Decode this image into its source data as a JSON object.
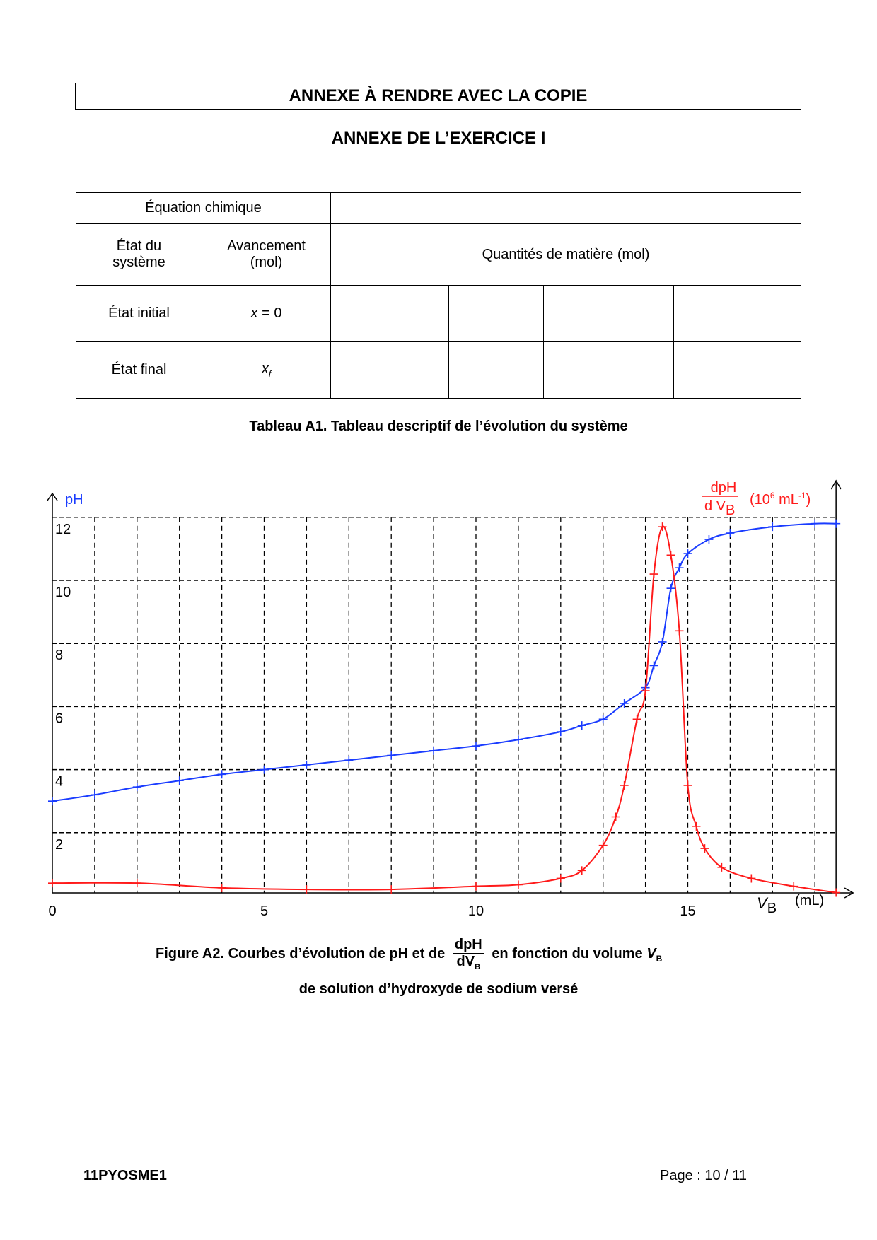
{
  "header": {
    "title": "ANNEXE À RENDRE AVEC LA COPIE",
    "subtitle": "ANNEXE DE L’EXERCICE I"
  },
  "table": {
    "equation_label": "Équation chimique",
    "etat_label_1": "État du",
    "etat_label_2": "système",
    "avancement_1": "Avancement",
    "avancement_2": "(mol)",
    "quantites": "Quantités de matière (mol)",
    "rows": [
      {
        "state": "État initial",
        "x_var": "x",
        "x_rest": " = 0"
      },
      {
        "state": "État final",
        "x_var": "x",
        "x_sub": "f"
      }
    ],
    "caption": "Tableau A1. Tableau descriptif de l’évolution du système"
  },
  "chart_data": {
    "type": "line",
    "xlabel": "V",
    "xlabel_sub": "B",
    "xunit": "(mL)",
    "ylabel_left": "pH",
    "ylabel_right_num": "dpH",
    "ylabel_right_den": "d V",
    "ylabel_right_den_sub": "B",
    "ylabel_right_unit_pre": "(10",
    "ylabel_right_unit_exp": "6",
    "ylabel_right_unit_mid": " mL",
    "ylabel_right_unit_exp2": "-1",
    "ylabel_right_unit_post": ")",
    "xlim": [
      0,
      18.5
    ],
    "ylim": [
      0,
      12.5
    ],
    "xticks": [
      "0",
      "5",
      "10",
      "15"
    ],
    "xtick_values": [
      0,
      5,
      10,
      15
    ],
    "yticks": [
      "2",
      "4",
      "6",
      "8",
      "10",
      "12"
    ],
    "ytick_values": [
      2,
      4,
      6,
      8,
      10,
      12
    ],
    "grid": true,
    "series": [
      {
        "name": "pH",
        "color": "#1a3cff",
        "points": [
          [
            0,
            3.0
          ],
          [
            1,
            3.2
          ],
          [
            2,
            3.45
          ],
          [
            3,
            3.65
          ],
          [
            4,
            3.85
          ],
          [
            5,
            4.0
          ],
          [
            6,
            4.15
          ],
          [
            7,
            4.3
          ],
          [
            8,
            4.45
          ],
          [
            9,
            4.6
          ],
          [
            10,
            4.75
          ],
          [
            11,
            4.95
          ],
          [
            12,
            5.2
          ],
          [
            12.5,
            5.4
          ],
          [
            13,
            5.6
          ],
          [
            13.5,
            6.1
          ],
          [
            14,
            6.6
          ],
          [
            14.2,
            7.3
          ],
          [
            14.4,
            8.05
          ],
          [
            14.6,
            9.75
          ],
          [
            14.8,
            10.4
          ],
          [
            15,
            10.85
          ],
          [
            15.5,
            11.3
          ],
          [
            16,
            11.5
          ],
          [
            17,
            11.7
          ],
          [
            18,
            11.8
          ],
          [
            18.5,
            11.8
          ]
        ]
      },
      {
        "name": "dpH/dVB",
        "color": "#ff1a1a",
        "points": [
          [
            0,
            0.4
          ],
          [
            2,
            0.4
          ],
          [
            4,
            0.25
          ],
          [
            6,
            0.2
          ],
          [
            8,
            0.2
          ],
          [
            10,
            0.3
          ],
          [
            11,
            0.35
          ],
          [
            12,
            0.55
          ],
          [
            12.5,
            0.8
          ],
          [
            13,
            1.6
          ],
          [
            13.3,
            2.5
          ],
          [
            13.5,
            3.5
          ],
          [
            13.8,
            5.6
          ],
          [
            14,
            6.5
          ],
          [
            14.2,
            10.2
          ],
          [
            14.4,
            11.7
          ],
          [
            14.6,
            10.8
          ],
          [
            14.8,
            8.4
          ],
          [
            15,
            3.5
          ],
          [
            15.2,
            2.2
          ],
          [
            15.4,
            1.5
          ],
          [
            15.8,
            0.9
          ],
          [
            16.5,
            0.55
          ],
          [
            17.5,
            0.3
          ],
          [
            18.5,
            0.1
          ]
        ]
      }
    ]
  },
  "figure_caption": {
    "pre": "Figure A2. Courbes d’évolution de pH et de",
    "num": "dpH",
    "den": "dV",
    "den_sub": "B",
    "post": "en fonction du volume",
    "var": "V",
    "var_sub": "B",
    "line2": "de solution d’hydroxyde de sodium versé"
  },
  "footer": {
    "code": "11PYOSME1",
    "page": "Page : 10 / 11"
  }
}
